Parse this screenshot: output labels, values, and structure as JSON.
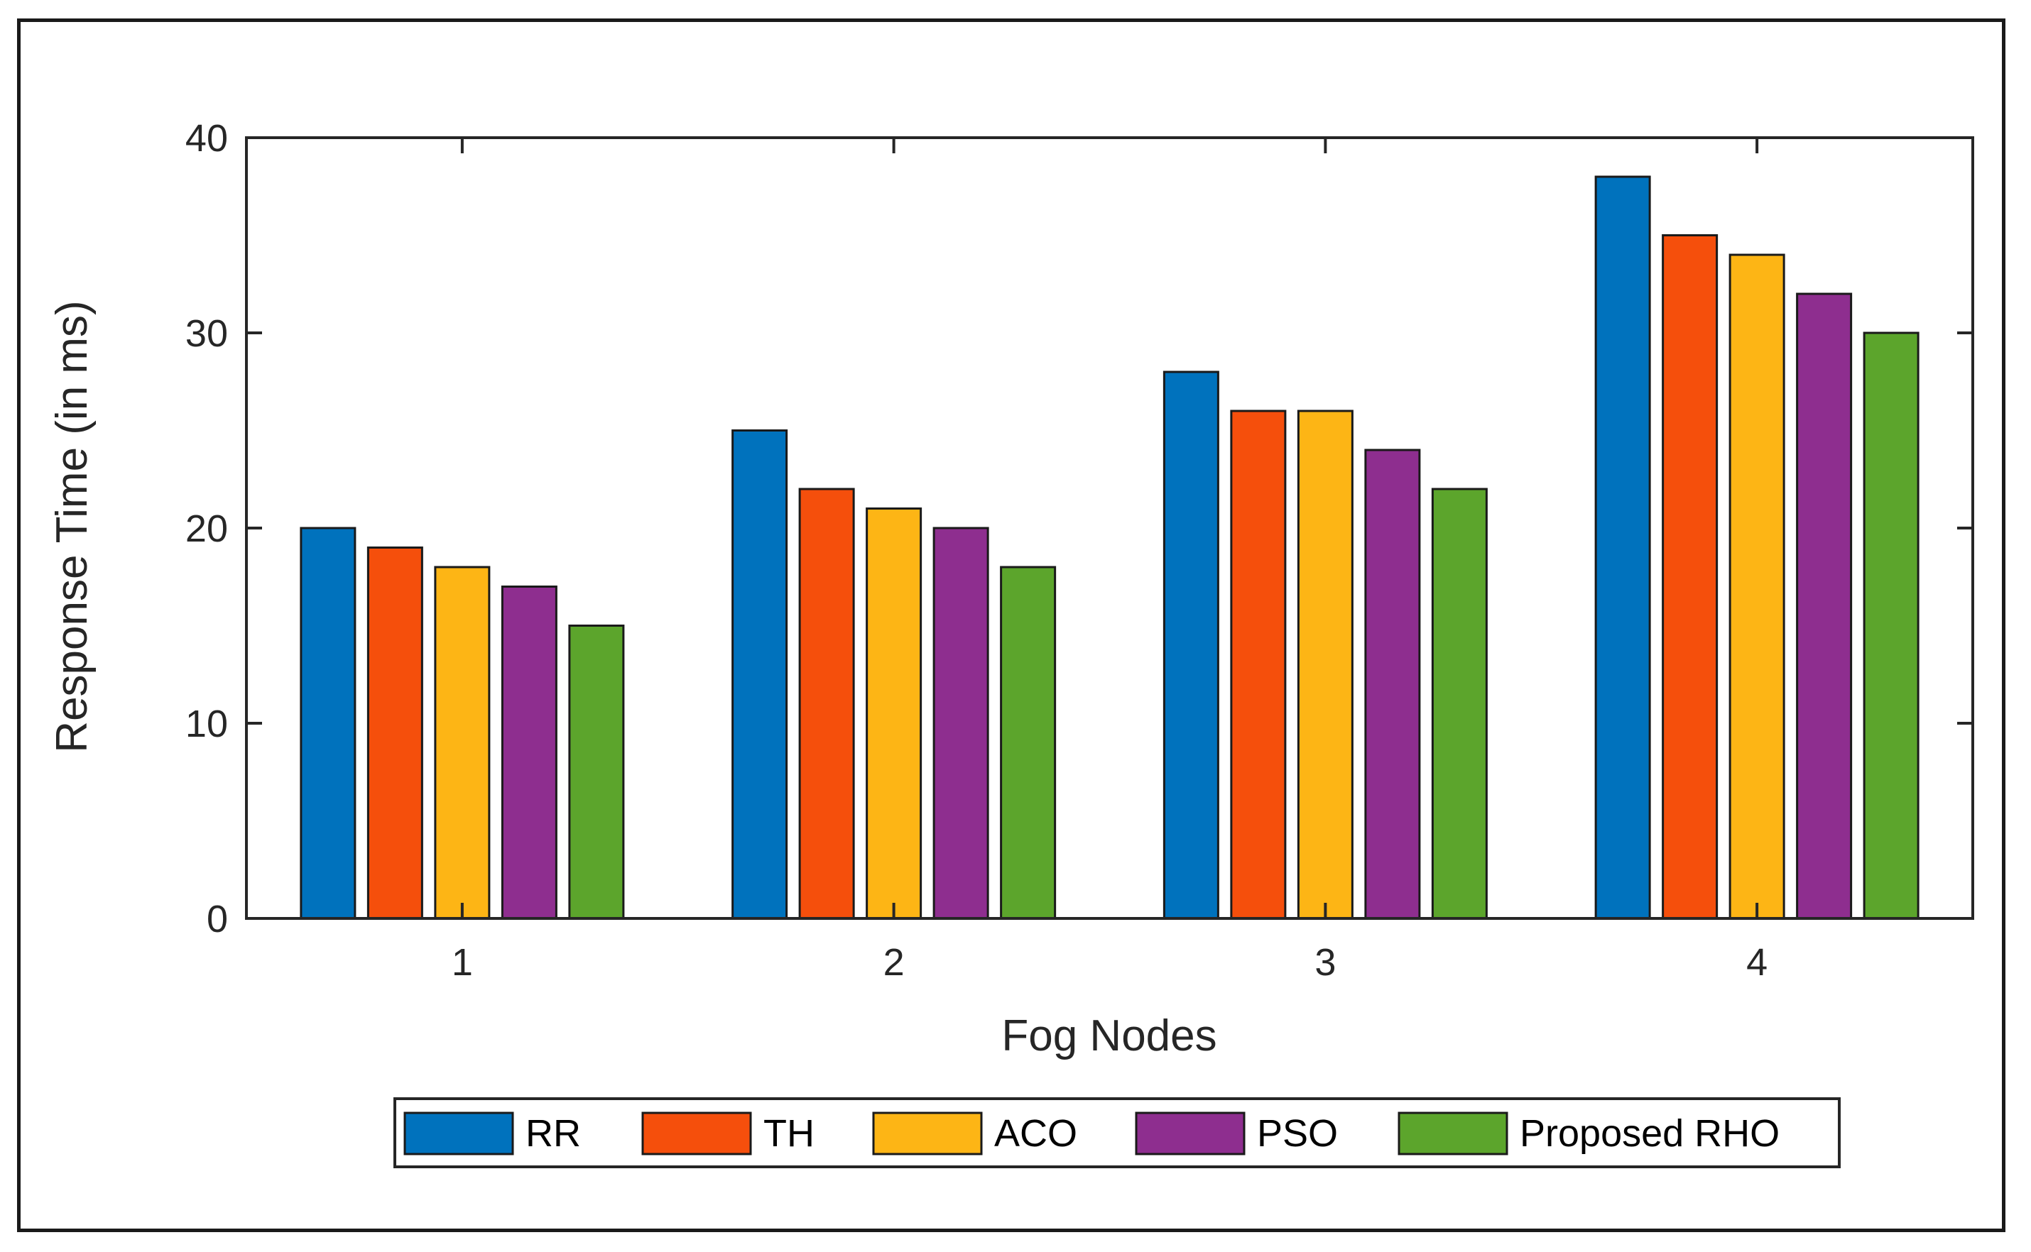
{
  "chart_data": {
    "type": "bar",
    "title": "",
    "xlabel": "Fog Nodes",
    "ylabel": "Response Time (in ms)",
    "categories": [
      "1",
      "2",
      "3",
      "4"
    ],
    "ylim": [
      0,
      40
    ],
    "yticks": [
      0,
      10,
      20,
      30,
      40
    ],
    "grid": false,
    "legend_position": "bottom-outside",
    "series": [
      {
        "name": "RR",
        "color": "#0072BD",
        "values": [
          20,
          25,
          28,
          38
        ]
      },
      {
        "name": "TH",
        "color": "#F54F0C",
        "values": [
          19,
          22,
          26,
          35
        ]
      },
      {
        "name": "ACO",
        "color": "#FDB515",
        "values": [
          18,
          21,
          26,
          34
        ]
      },
      {
        "name": "PSO",
        "color": "#8E2E8F",
        "values": [
          17,
          20,
          24,
          32
        ]
      },
      {
        "name": "Proposed RHO",
        "color": "#5CA52C",
        "values": [
          15,
          18,
          22,
          30
        ]
      }
    ]
  }
}
